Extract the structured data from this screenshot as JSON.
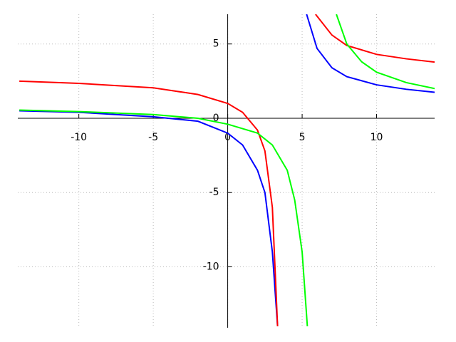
{
  "chart_data": {
    "type": "line",
    "xlim": [
      -14.1,
      13.9
    ],
    "ylim": [
      -14.1,
      7
    ],
    "xticks": [
      -10,
      -5,
      0,
      5,
      10
    ],
    "yticks": [
      -10,
      -5,
      0,
      5
    ],
    "grid": true,
    "series": [
      {
        "color": "#0000ff",
        "x": [
          -14,
          -10,
          -5,
          -2,
          0,
          1,
          2,
          2.5,
          3,
          3.35,
          null,
          5.3,
          6,
          7,
          8,
          10,
          12,
          13.9
        ],
        "values": [
          0.5,
          0.4,
          0.1,
          -0.2,
          -1.0,
          -1.8,
          -3.5,
          -5,
          -9,
          -14,
          null,
          7,
          4.7,
          3.4,
          2.8,
          2.25,
          1.95,
          1.75
        ]
      },
      {
        "color": "#ff0000",
        "x": [
          -14,
          -10,
          -5,
          -2,
          0,
          1,
          2,
          2.5,
          3,
          3.35,
          null,
          5.9,
          7,
          8,
          10,
          12,
          13.9
        ],
        "values": [
          2.5,
          2.35,
          2.05,
          1.6,
          1.0,
          0.4,
          -0.8,
          -2.2,
          -6,
          -14,
          null,
          7,
          5.6,
          4.9,
          4.3,
          4.0,
          3.78
        ]
      },
      {
        "color": "#00ff00",
        "x": [
          -14,
          -10,
          -5,
          -2,
          0,
          2,
          3,
          4,
          4.5,
          5,
          5.35,
          null,
          7.3,
          8,
          9,
          10,
          12,
          13.9
        ],
        "values": [
          0.55,
          0.45,
          0.25,
          0.0,
          -0.4,
          -1.0,
          -1.8,
          -3.5,
          -5.5,
          -9,
          -14,
          null,
          7,
          5.0,
          3.8,
          3.1,
          2.4,
          2.0
        ]
      }
    ]
  }
}
